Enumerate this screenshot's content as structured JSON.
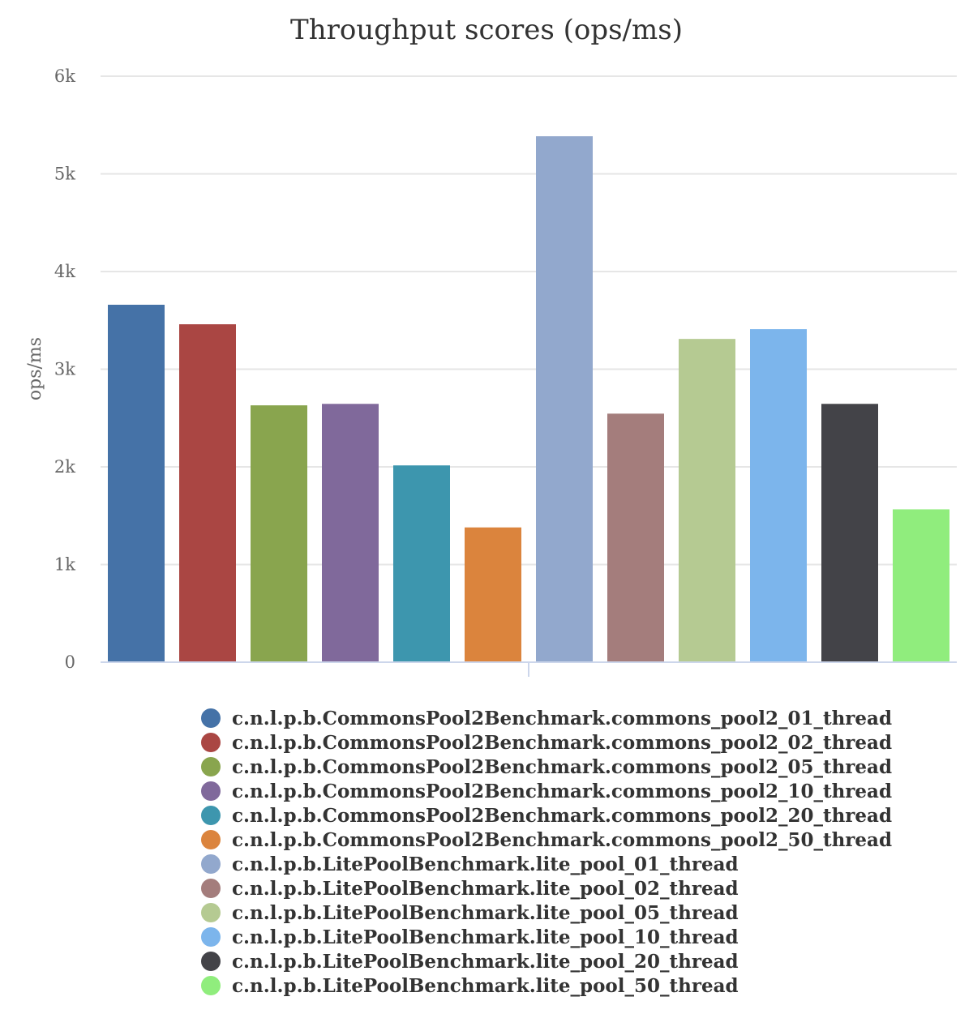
{
  "chart_data": {
    "type": "bar",
    "title": "Throughput scores (ops/ms)",
    "xlabel": "",
    "ylabel": "ops/ms",
    "ylim": [
      0,
      6000
    ],
    "yticks": [
      {
        "value": 0,
        "label": "0"
      },
      {
        "value": 1000,
        "label": "1k"
      },
      {
        "value": 2000,
        "label": "2k"
      },
      {
        "value": 3000,
        "label": "3k"
      },
      {
        "value": 4000,
        "label": "4k"
      },
      {
        "value": 5000,
        "label": "5k"
      },
      {
        "value": 6000,
        "label": "6k"
      }
    ],
    "grid": true,
    "legend_position": "bottom",
    "series": [
      {
        "name": "c.n.l.p.b.CommonsPool2Benchmark.commons_pool2_01_thread",
        "value": 3660,
        "color": "#4572a7"
      },
      {
        "name": "c.n.l.p.b.CommonsPool2Benchmark.commons_pool2_02_thread",
        "value": 3460,
        "color": "#aa4643"
      },
      {
        "name": "c.n.l.p.b.CommonsPool2Benchmark.commons_pool2_05_thread",
        "value": 2630,
        "color": "#89a54e"
      },
      {
        "name": "c.n.l.p.b.CommonsPool2Benchmark.commons_pool2_10_thread",
        "value": 2645,
        "color": "#80699b"
      },
      {
        "name": "c.n.l.p.b.CommonsPool2Benchmark.commons_pool2_20_thread",
        "value": 2015,
        "color": "#3d96ae"
      },
      {
        "name": "c.n.l.p.b.CommonsPool2Benchmark.commons_pool2_50_thread",
        "value": 1380,
        "color": "#db843d"
      },
      {
        "name": "c.n.l.p.b.LitePoolBenchmark.lite_pool_01_thread",
        "value": 5385,
        "color": "#92a8cd"
      },
      {
        "name": "c.n.l.p.b.LitePoolBenchmark.lite_pool_02_thread",
        "value": 2545,
        "color": "#a47d7c"
      },
      {
        "name": "c.n.l.p.b.LitePoolBenchmark.lite_pool_05_thread",
        "value": 3310,
        "color": "#b5ca92"
      },
      {
        "name": "c.n.l.p.b.LitePoolBenchmark.lite_pool_10_thread",
        "value": 3410,
        "color": "#7cb5ec"
      },
      {
        "name": "c.n.l.p.b.LitePoolBenchmark.lite_pool_20_thread",
        "value": 2645,
        "color": "#434348"
      },
      {
        "name": "c.n.l.p.b.LitePoolBenchmark.lite_pool_50_thread",
        "value": 1565,
        "color": "#90ed7d"
      }
    ]
  }
}
